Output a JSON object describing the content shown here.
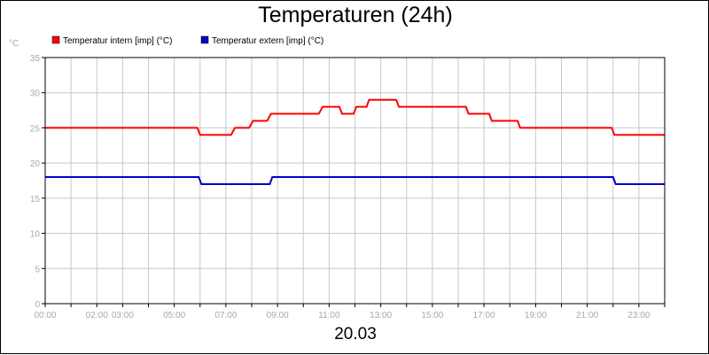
{
  "chart_data": {
    "type": "line",
    "title": "Temperaturen (24h)",
    "xlabel": "20.03",
    "ylabel": "°C",
    "ylim": [
      0,
      35
    ],
    "yticks": [
      0,
      5,
      10,
      15,
      20,
      25,
      30,
      35
    ],
    "xlim_hours": [
      0,
      24
    ],
    "xticks": [
      {
        "h": 0,
        "label": "00:00"
      },
      {
        "h": 2,
        "label": "02:00"
      },
      {
        "h": 3,
        "label": "03:00"
      },
      {
        "h": 5,
        "label": "05:00"
      },
      {
        "h": 7,
        "label": "07:00"
      },
      {
        "h": 9,
        "label": "09:00"
      },
      {
        "h": 11,
        "label": "11:00"
      },
      {
        "h": 13,
        "label": "13:00"
      },
      {
        "h": 15,
        "label": "15:00"
      },
      {
        "h": 17,
        "label": "17:00"
      },
      {
        "h": 19,
        "label": "19:00"
      },
      {
        "h": 21,
        "label": "21:00"
      },
      {
        "h": 23,
        "label": "23:00"
      }
    ],
    "grid": true,
    "legend_position": "top-left",
    "series": [
      {
        "name": "Temperatur intern [imp] (°C)",
        "color": "#ff0000",
        "points": [
          [
            0,
            25
          ],
          [
            5.9,
            25
          ],
          [
            6.0,
            24
          ],
          [
            7.2,
            24
          ],
          [
            7.35,
            25
          ],
          [
            7.9,
            25
          ],
          [
            8.05,
            26
          ],
          [
            8.6,
            26
          ],
          [
            8.75,
            27
          ],
          [
            10.6,
            27
          ],
          [
            10.75,
            28
          ],
          [
            11.4,
            28
          ],
          [
            11.5,
            27
          ],
          [
            11.95,
            27
          ],
          [
            12.05,
            28
          ],
          [
            12.45,
            28
          ],
          [
            12.55,
            29
          ],
          [
            13.6,
            29
          ],
          [
            13.7,
            28
          ],
          [
            16.3,
            28
          ],
          [
            16.4,
            27
          ],
          [
            17.2,
            27
          ],
          [
            17.3,
            26
          ],
          [
            18.3,
            26
          ],
          [
            18.4,
            25
          ],
          [
            21.95,
            25
          ],
          [
            22.05,
            24
          ],
          [
            24,
            24
          ]
        ]
      },
      {
        "name": "Temperatur extern [imp] (°C)",
        "color": "#0000cc",
        "points": [
          [
            0,
            18
          ],
          [
            5.95,
            18
          ],
          [
            6.05,
            17
          ],
          [
            8.7,
            17
          ],
          [
            8.8,
            18
          ],
          [
            22.0,
            18
          ],
          [
            22.1,
            17
          ],
          [
            24,
            17
          ]
        ]
      }
    ]
  }
}
